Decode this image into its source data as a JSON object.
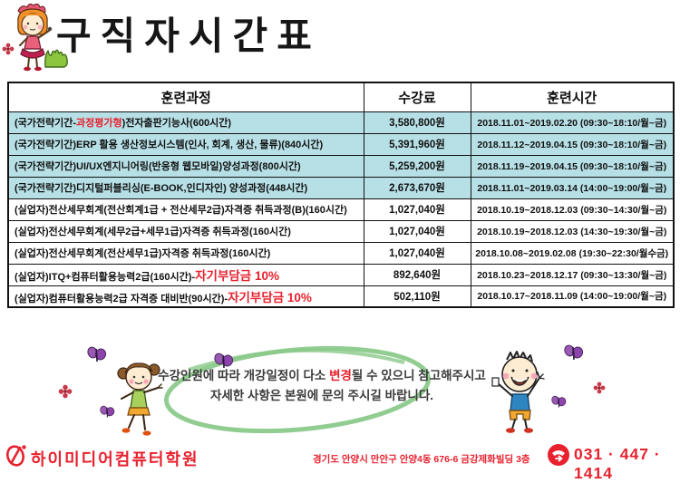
{
  "page": {
    "title": "구직자시간표"
  },
  "colors": {
    "highlight_row": "#b7e0e6",
    "accent_red": "#e8212e",
    "circle_green": "#8bc98b",
    "butterfly_purple": "#9b59b6",
    "grass_green": "#8cc63f"
  },
  "table": {
    "headers": [
      "훈련과정",
      "수강료",
      "훈련시간"
    ],
    "rows": [
      {
        "course_pre": "(국가전략기간-",
        "course_red": "과정평가형",
        "course_post": ")전자출판기능사(600시간)",
        "red_big": false,
        "fee": "3,580,800원",
        "time": "2018.11.01~2019.02.20 (09:30~18:10/월~금)",
        "highlighted": true
      },
      {
        "course_pre": "(국가전략기간)ERP 활용 생산정보시스템(인사, 회계, 생산, 물류)(840시간)",
        "course_red": "",
        "course_post": "",
        "red_big": false,
        "fee": "5,391,960원",
        "time": "2018.11.12~2019.04.15 (09:30~18:10/월~금)",
        "highlighted": true
      },
      {
        "course_pre": "(국가전략기간)UI/UX엔지니어링(반응형 웹모바일)양성과정(800시간)",
        "course_red": "",
        "course_post": "",
        "red_big": false,
        "fee": "5,259,200원",
        "time": "2018.11.19~2019.04.15 (09:30~18:10/월~금)",
        "highlighted": true
      },
      {
        "course_pre": "(국가전략기간)디지털퍼블리싱(E-BOOK,인디자인) 양성과정(448시간)",
        "course_red": "",
        "course_post": "",
        "red_big": false,
        "fee": "2,673,670원",
        "time": "2018.11.01~2019.03.14 (14:00~19:00/월~금)",
        "highlighted": true
      },
      {
        "course_pre": "(실업자)전산세무회계(전산회계1급 + 전산세무2급)자격증 취득과정(B)(160시간)",
        "course_red": "",
        "course_post": "",
        "red_big": false,
        "fee": "1,027,040원",
        "time": "2018.10.19~2018.12.03 (09:30~14:30/월~금)",
        "highlighted": false
      },
      {
        "course_pre": "(실업자)전산세무회계(세무2급+세무1급)자격증 취득과정(160시간)",
        "course_red": "",
        "course_post": "",
        "red_big": false,
        "fee": "1,027,040원",
        "time": "2018.10.19~2018.12.03 (14:30~19:30/월~금)",
        "highlighted": false
      },
      {
        "course_pre": "(실업자)전산세무회계(전산세무1급)자격증 취득과정(160시간)",
        "course_red": "",
        "course_post": "",
        "red_big": false,
        "fee": "1,027,040원",
        "time": "2018.10.08~2019.02.08 (19:30~22:30/월수금)",
        "highlighted": false
      },
      {
        "course_pre": "(실업자)ITQ+컴퓨터활용능력2급(160시간)-",
        "course_red": "자기부담금 10%",
        "course_post": "",
        "red_big": true,
        "fee": "892,640원",
        "time": "2018.10.23~2018.12.17 (09:30~13:30/월~금)",
        "highlighted": false
      },
      {
        "course_pre": "(실업자)컴퓨터활용능력2급 자격증 대비반(90시간)-",
        "course_red": "자기부담금 10%",
        "course_post": "",
        "red_big": true,
        "fee": "502,110원",
        "time": "2018.10.17~2018.11.09 (14:00~19:00/월~금)",
        "highlighted": false
      }
    ]
  },
  "notice": {
    "line1_pre": "수강인원에 따라 개강일정이 다소 ",
    "line1_red": "변경",
    "line1_post": "될 수 있으니 참고해주시고",
    "line2": "자세한 사항은 본원에 문의 주시길 바랍니다."
  },
  "footer": {
    "academy_name": "하이미디어컴퓨터학원",
    "address": "경기도 안양시 만안구 안양4동 676-6 금강제화빌딩 3층",
    "phone": "031 · 447 · 1414"
  }
}
